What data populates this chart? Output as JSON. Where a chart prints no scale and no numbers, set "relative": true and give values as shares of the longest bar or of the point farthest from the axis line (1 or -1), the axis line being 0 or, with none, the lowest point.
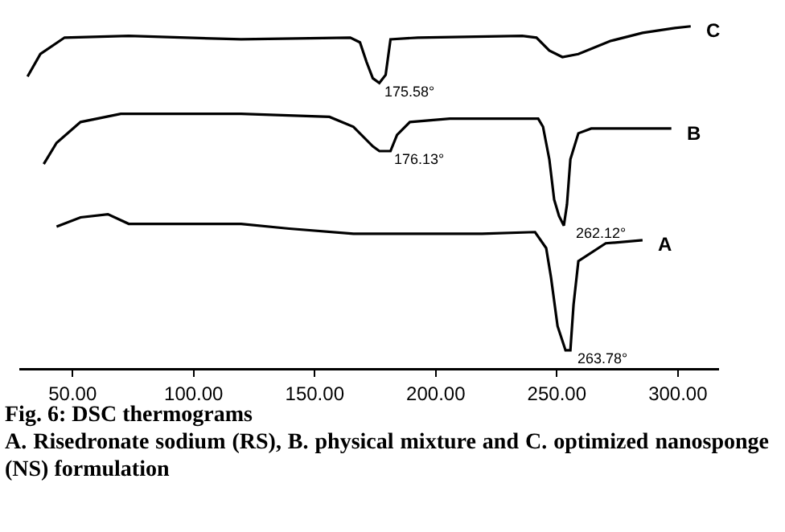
{
  "chart_data": {
    "type": "line",
    "relative": true,
    "title": "Fig. 6: DSC thermograms",
    "subtitle": "A. Risedronate sodium (RS), B. physical mixture and C. optimized nanosponge (NS) formulation",
    "xlim": [
      28,
      317
    ],
    "xticks": [
      {
        "value": 50,
        "label": "50.00"
      },
      {
        "value": 100,
        "label": "100.00"
      },
      {
        "value": 150,
        "label": "150.00"
      },
      {
        "value": 200,
        "label": "200.00"
      },
      {
        "value": 250,
        "label": "250.00"
      },
      {
        "value": 300,
        "label": "300.00"
      }
    ],
    "tick_labels": "x",
    "legend": false,
    "series": [
      {
        "name": "C",
        "color": "#000000",
        "x": [
          31.4,
          36.7,
          46.7,
          73.2,
          119.6,
          164.7,
          168.7,
          171.4,
          174.0,
          176.7,
          179.3,
          181.3,
          192.6,
          235.7,
          241.6,
          246.9,
          252.3,
          258.9,
          272.1,
          285.4,
          298.7,
          305.3
        ],
        "values": [
          0.853,
          0.919,
          0.967,
          0.972,
          0.962,
          0.967,
          0.953,
          0.896,
          0.848,
          0.834,
          0.858,
          0.962,
          0.967,
          0.972,
          0.967,
          0.929,
          0.91,
          0.919,
          0.957,
          0.981,
          0.995,
          1
        ]
      },
      {
        "name": "B",
        "color": "#000000",
        "x": [
          38.1,
          43.4,
          53.3,
          69.9,
          79.8,
          119.6,
          156.1,
          166.0,
          174.0,
          176.7,
          181.3,
          184.0,
          189.3,
          205.8,
          242.3,
          244.3,
          246.9,
          248.9,
          250.9,
          252.9,
          254.2,
          255.6,
          258.9,
          264.2,
          275.5,
          297.3
        ],
        "values": [
          0.597,
          0.659,
          0.72,
          0.744,
          0.744,
          0.744,
          0.735,
          0.706,
          0.649,
          0.635,
          0.635,
          0.682,
          0.72,
          0.73,
          0.73,
          0.706,
          0.611,
          0.493,
          0.445,
          0.417,
          0.479,
          0.611,
          0.687,
          0.701,
          0.701,
          0.701
        ]
      },
      {
        "name": "A",
        "color": "#000000",
        "x": [
          43.4,
          53.3,
          64.6,
          73.2,
          119.6,
          139.5,
          166.0,
          219.1,
          241.0,
          245.6,
          247.6,
          250.3,
          253.6,
          255.6,
          256.9,
          258.9,
          270.2,
          285.4
        ],
        "values": [
          0.414,
          0.441,
          0.45,
          0.422,
          0.422,
          0.408,
          0.393,
          0.393,
          0.398,
          0.351,
          0.265,
          0.123,
          0.052,
          0.052,
          0.185,
          0.313,
          0.365,
          0.374
        ]
      }
    ],
    "annotations": [
      {
        "text": "175.58°",
        "x": 174.0,
        "y": 0.834
      },
      {
        "text": "176.13°",
        "x": 178.0,
        "y": 0.635
      },
      {
        "text": "262.12°",
        "x": 252.9,
        "y": 0.417
      },
      {
        "text": "263.78°",
        "x": 253.6,
        "y": 0.052
      }
    ]
  }
}
